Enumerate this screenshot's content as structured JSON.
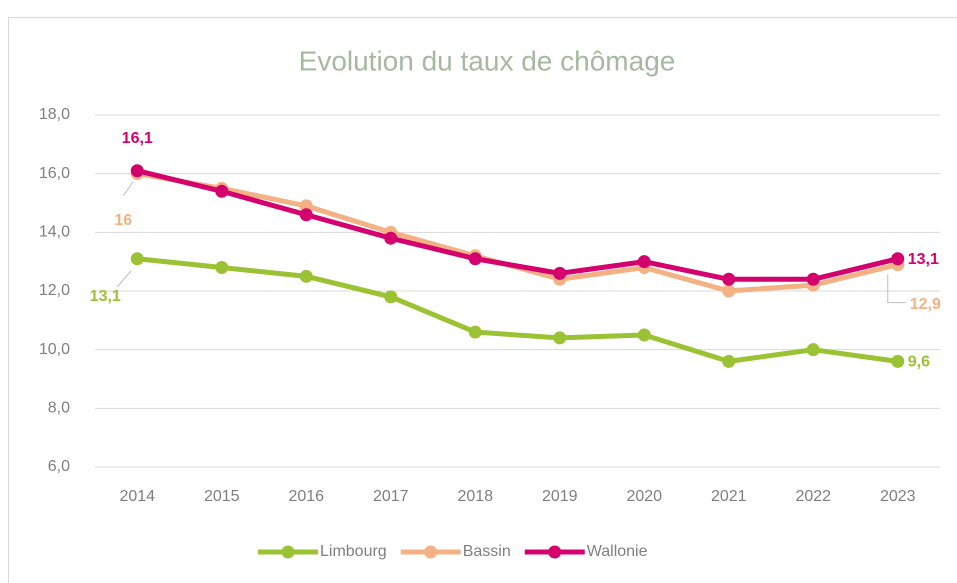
{
  "chart_data": {
    "type": "line",
    "title": "Evolution du taux de chômage",
    "categories": [
      "2014",
      "2015",
      "2016",
      "2017",
      "2018",
      "2019",
      "2020",
      "2021",
      "2022",
      "2023"
    ],
    "series": [
      {
        "name": "Limbourg",
        "color": "#9bc232",
        "values": [
          13.1,
          12.8,
          12.5,
          11.8,
          10.6,
          10.4,
          10.5,
          9.6,
          10.0,
          9.6
        ],
        "value_labels": [
          "13,1",
          null,
          null,
          null,
          null,
          null,
          null,
          null,
          null,
          "9,6"
        ]
      },
      {
        "name": "Bassin",
        "color": "#f4b183",
        "values": [
          16.0,
          15.5,
          14.9,
          14.0,
          13.2,
          12.4,
          12.8,
          12.0,
          12.2,
          12.9
        ],
        "value_labels": [
          "16",
          null,
          null,
          null,
          null,
          null,
          null,
          null,
          null,
          "12,9"
        ]
      },
      {
        "name": "Wallonie",
        "color": "#d4006e",
        "values": [
          16.1,
          15.4,
          14.6,
          13.8,
          13.1,
          12.6,
          13.0,
          12.4,
          12.4,
          13.1
        ],
        "value_labels": [
          "16,1",
          null,
          null,
          null,
          null,
          null,
          null,
          null,
          null,
          "13,1"
        ]
      }
    ],
    "ylim": [
      6,
      18
    ],
    "yticks": [
      {
        "value": 6,
        "label": "6,0"
      },
      {
        "value": 8,
        "label": "8,0"
      },
      {
        "value": 10,
        "label": "10,0"
      },
      {
        "value": 12,
        "label": "12,0"
      },
      {
        "value": 14,
        "label": "14,0"
      },
      {
        "value": 16,
        "label": "16,0"
      },
      {
        "value": 18,
        "label": "18,0"
      }
    ],
    "grid": true,
    "legend": "bottom"
  }
}
